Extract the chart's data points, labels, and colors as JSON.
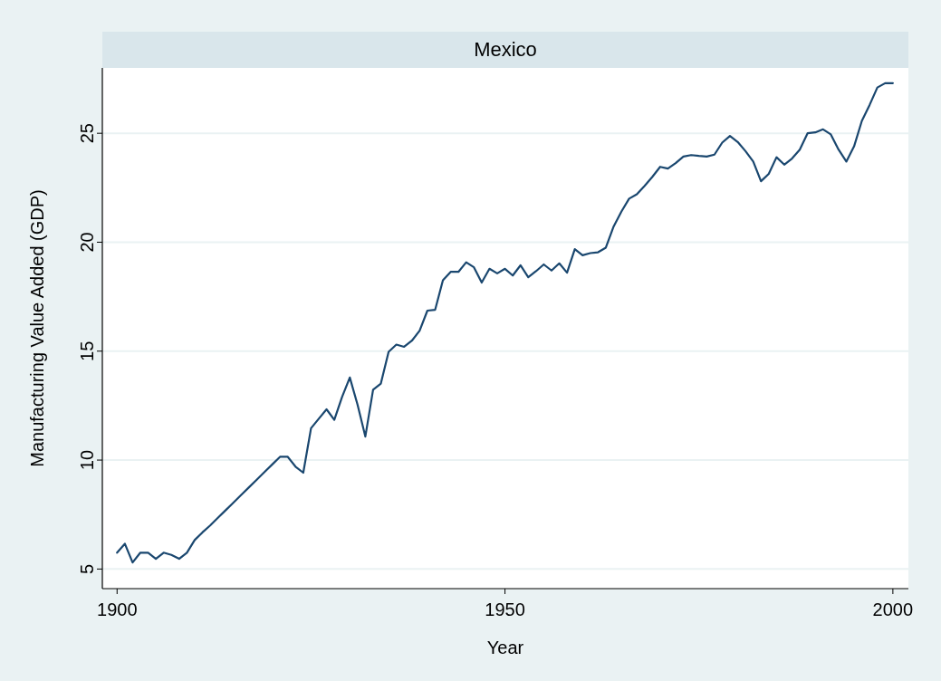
{
  "chart_data": {
    "type": "line",
    "title": "Mexico",
    "xlabel": "Year",
    "ylabel": "Manufacturing Value Added (GDP)",
    "xlim": [
      1898.1,
      2002
    ],
    "xticks": [
      1900,
      1950,
      2000
    ],
    "ylim": [
      4.1,
      28
    ],
    "yticks": [
      5,
      10,
      15,
      20,
      25
    ],
    "grid": "y",
    "x": [
      1900,
      1901,
      1902,
      1903,
      1904,
      1905,
      1906,
      1907,
      1908,
      1909,
      1910,
      1911,
      1912,
      1913,
      1914,
      1915,
      1916,
      1917,
      1918,
      1919,
      1920,
      1921,
      1922,
      1923,
      1924,
      1925,
      1926,
      1927,
      1928,
      1929,
      1930,
      1931,
      1932,
      1933,
      1934,
      1935,
      1936,
      1937,
      1938,
      1939,
      1940,
      1941,
      1942,
      1943,
      1944,
      1945,
      1946,
      1947,
      1948,
      1949,
      1950,
      1951,
      1952,
      1953,
      1954,
      1955,
      1956,
      1957,
      1958,
      1959,
      1960,
      1961,
      1962,
      1963,
      1964,
      1965,
      1966,
      1967,
      1968,
      1969,
      1970,
      1971,
      1972,
      1973,
      1974,
      1975,
      1976,
      1977,
      1978,
      1979,
      1980,
      1981,
      1982,
      1983,
      1984,
      1985,
      1986,
      1987,
      1988,
      1989,
      1990,
      1991,
      1992,
      1993,
      1994,
      1995,
      1996,
      1997,
      1998,
      1999,
      2000
    ],
    "series": [
      {
        "color": "#1a476f",
        "values": [
          5.75,
          6.16,
          5.3,
          5.75,
          5.75,
          5.47,
          5.75,
          5.65,
          5.47,
          5.75,
          6.33,
          6.68,
          7.0,
          7.35,
          7.7,
          8.05,
          8.4,
          8.75,
          9.1,
          9.45,
          9.8,
          10.15,
          10.15,
          9.7,
          9.42,
          11.46,
          11.9,
          12.33,
          11.85,
          12.9,
          13.79,
          12.54,
          11.08,
          13.23,
          13.51,
          14.97,
          15.3,
          15.2,
          15.48,
          15.94,
          16.86,
          16.9,
          18.25,
          18.64,
          18.64,
          19.08,
          18.85,
          18.15,
          18.78,
          18.57,
          18.78,
          18.47,
          18.94,
          18.39,
          18.67,
          18.98,
          18.7,
          19.03,
          18.6,
          19.68,
          19.4,
          19.5,
          19.54,
          19.75,
          20.72,
          21.4,
          22.0,
          22.2,
          22.59,
          23.0,
          23.46,
          23.38,
          23.63,
          23.93,
          24.0,
          23.96,
          23.93,
          24.02,
          24.57,
          24.88,
          24.6,
          24.18,
          23.7,
          22.8,
          23.14,
          23.9,
          23.56,
          23.84,
          24.25,
          25.0,
          25.04,
          25.18,
          24.95,
          24.25,
          23.7,
          24.4,
          25.57,
          26.3,
          27.1,
          27.3,
          27.3
        ]
      }
    ]
  }
}
